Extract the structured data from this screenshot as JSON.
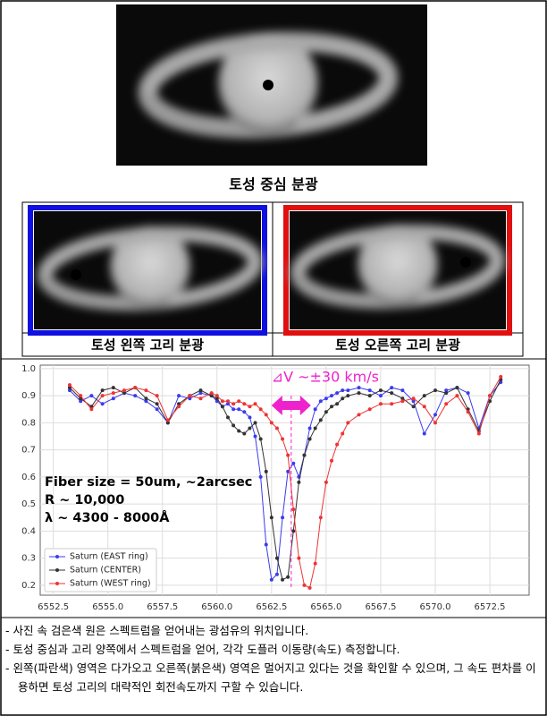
{
  "top_caption": "토성 중심 분광",
  "panel_captions": [
    "토성 왼쪽 고리 분광",
    "토성 오른쪽 고리 분광"
  ],
  "chart_data": {
    "type": "line",
    "x": [
      6553.25,
      6553.75,
      6554.25,
      6554.75,
      6555.25,
      6555.75,
      6556.25,
      6556.75,
      6557.25,
      6557.75,
      6558.25,
      6558.75,
      6559.25,
      6559.75,
      6560.0,
      6560.25,
      6560.5,
      6560.75,
      6561.0,
      6561.25,
      6561.5,
      6561.75,
      6562.0,
      6562.25,
      6562.5,
      6562.75,
      6563.0,
      6563.25,
      6563.5,
      6563.75,
      6564.0,
      6564.25,
      6564.5,
      6564.75,
      6565.0,
      6565.25,
      6565.5,
      6565.75,
      6566.0,
      6566.5,
      6567.0,
      6567.5,
      6568.0,
      6568.5,
      6569.0,
      6569.5,
      6570.0,
      6570.5,
      6571.0,
      6571.5,
      6572.0,
      6572.5,
      6573.0
    ],
    "series": [
      {
        "name": "Saturn (EAST ring)",
        "color": "#3b3bf0",
        "values": [
          0.92,
          0.88,
          0.9,
          0.87,
          0.89,
          0.91,
          0.9,
          0.88,
          0.85,
          0.8,
          0.9,
          0.89,
          0.91,
          0.9,
          0.88,
          0.86,
          0.87,
          0.85,
          0.85,
          0.84,
          0.82,
          0.75,
          0.6,
          0.35,
          0.22,
          0.24,
          0.45,
          0.62,
          0.65,
          0.6,
          0.68,
          0.78,
          0.85,
          0.88,
          0.89,
          0.9,
          0.91,
          0.92,
          0.92,
          0.93,
          0.92,
          0.9,
          0.93,
          0.92,
          0.88,
          0.76,
          0.83,
          0.92,
          0.93,
          0.91,
          0.78,
          0.9,
          0.95
        ]
      },
      {
        "name": "Saturn (CENTER)",
        "color": "#333333",
        "values": [
          0.93,
          0.89,
          0.86,
          0.92,
          0.93,
          0.91,
          0.93,
          0.89,
          0.87,
          0.8,
          0.87,
          0.9,
          0.92,
          0.9,
          0.89,
          0.86,
          0.82,
          0.79,
          0.77,
          0.76,
          0.78,
          0.8,
          0.74,
          0.62,
          0.45,
          0.3,
          0.22,
          0.23,
          0.4,
          0.58,
          0.68,
          0.74,
          0.78,
          0.81,
          0.84,
          0.86,
          0.87,
          0.89,
          0.9,
          0.91,
          0.9,
          0.92,
          0.91,
          0.89,
          0.86,
          0.9,
          0.92,
          0.91,
          0.93,
          0.85,
          0.77,
          0.88,
          0.96
        ]
      },
      {
        "name": "Saturn (WEST ring)",
        "color": "#ee3333",
        "values": [
          0.94,
          0.9,
          0.85,
          0.9,
          0.91,
          0.92,
          0.93,
          0.92,
          0.9,
          0.81,
          0.86,
          0.9,
          0.89,
          0.91,
          0.9,
          0.88,
          0.88,
          0.87,
          0.88,
          0.87,
          0.86,
          0.87,
          0.85,
          0.83,
          0.8,
          0.78,
          0.74,
          0.68,
          0.48,
          0.3,
          0.2,
          0.19,
          0.28,
          0.45,
          0.58,
          0.66,
          0.72,
          0.76,
          0.8,
          0.83,
          0.85,
          0.87,
          0.87,
          0.88,
          0.89,
          0.86,
          0.8,
          0.87,
          0.9,
          0.84,
          0.76,
          0.9,
          0.97
        ]
      }
    ],
    "xlim": [
      6551.9,
      6574.3
    ],
    "ylim": [
      0.163,
      1.013
    ],
    "xticks": [
      6552.5,
      {
        "value": 6555.0,
        "label": "6555.0"
      },
      6557.5,
      {
        "value": 6560.0,
        "label": "6560.0"
      },
      6562.5,
      {
        "value": 6565.0,
        "label": "6565.0"
      },
      6567.5,
      {
        "value": 6570.0,
        "label": "6570.0"
      },
      6572.5
    ],
    "yticks": [
      0.2,
      0.3,
      0.4,
      0.5,
      0.6,
      0.7,
      0.8,
      0.9,
      {
        "value": 1.0,
        "label": "1.0"
      }
    ],
    "grid": true,
    "legend": "lower left",
    "reference_line_x": 6563.4,
    "annotation": "⊿V ~±30 km/s",
    "annotation_color": "#ee22cc",
    "info_lines": [
      "Fiber size = 50um, ~2arcsec",
      "R ~ 10,000",
      "λ ~ 4300 - 8000Å"
    ]
  },
  "notes": [
    "- 사진 속 검은색 원은 스펙트럼을 얻어내는 광섬유의 위치입니다.",
    "- 토성 중심과 고리 양쪽에서 스펙트럼을 얻어, 각각 도플러 이동량(속도) 측정합니다.",
    "- 왼쪽(파란색) 영역은 다가오고 오른쪽(붉은색) 영역은 멀어지고 있다는 것을 확인할 수 있으며, 그 속도 편차를 이용하면 토성 고리의 대략적인 회전속도까지 구할 수 있습니다."
  ]
}
